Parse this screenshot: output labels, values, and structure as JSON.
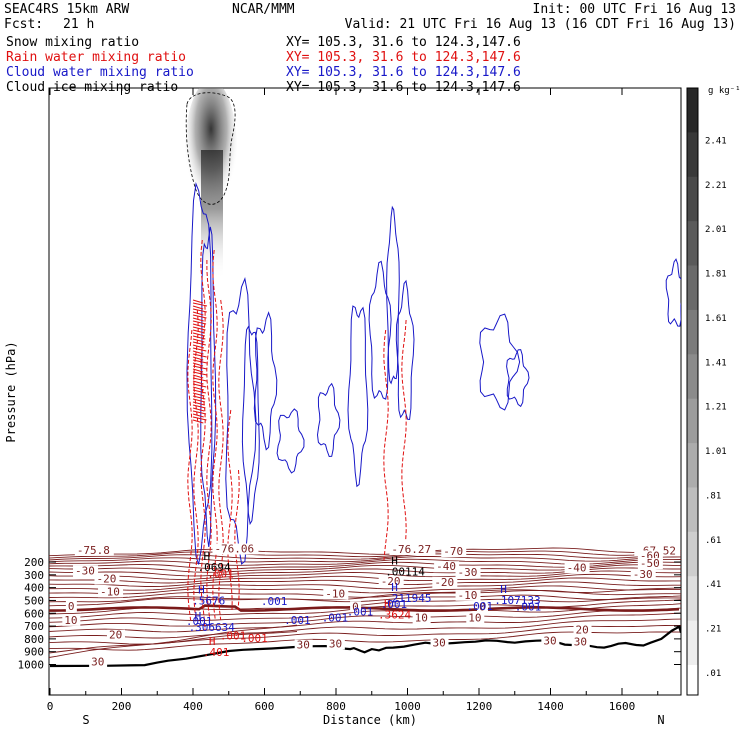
{
  "header": {
    "model": "SEAC4RS 15km ARW",
    "center": "NCAR/MMM",
    "init": "Init: 00 UTC Fri 16 Aug 13",
    "fcst_label": "Fcst:",
    "fcst_value": "21 h",
    "valid": "Valid: 21 UTC Fri 16 Aug 13 (16 CDT Fri 16 Aug 13)",
    "lines": [
      {
        "name": "Snow mixing ratio",
        "xy": "XY= 105.3, 31.6 to 124.3,147.6",
        "color": "#000000"
      },
      {
        "name": "Rain water mixing ratio",
        "xy": "XY= 105.3, 31.6 to 124.3,147.6",
        "color": "#e01010"
      },
      {
        "name": "Cloud water mixing ratio",
        "xy": "XY= 105.3, 31.6 to 124.3,147.6",
        "color": "#1818c8"
      },
      {
        "name": "Cloud ice mixing ratio",
        "xy": "XY= 105.3, 31.6 to 124.3,147.6",
        "color": "#000000"
      }
    ]
  },
  "colors": {
    "temperature": "#7a1f1f",
    "freezing": "#7a1a1a",
    "rain": "#e01010",
    "cloud_water": "#1818c8",
    "terrain": "#000000"
  },
  "colorbar": {
    "unit": "g kg⁻¹",
    "labels": [
      "2.41",
      "2.21",
      "2.01",
      "1.81",
      "1.61",
      "1.41",
      "1.21",
      "1.01",
      ".81",
      ".61",
      ".41",
      ".21",
      ".01"
    ]
  },
  "chart_data": {
    "type": "contour-cross-section",
    "xlabel": "Distance (km)",
    "ylabel": "Pressure (hPa)",
    "x_ticks": [
      0,
      200,
      400,
      600,
      800,
      1000,
      1200,
      1400,
      1600
    ],
    "x_tick_labels": [
      "0",
      "200",
      "400",
      "600",
      "800",
      "1000",
      "1200",
      "1400",
      "1600"
    ],
    "xlim": [
      0,
      1765
    ],
    "y_ticks": [
      200,
      300,
      400,
      500,
      600,
      700,
      800,
      900,
      1000
    ],
    "y_tick_labels": [
      "200",
      "300",
      "400",
      "500",
      "600",
      "700",
      "800",
      "900",
      "1000"
    ],
    "ylim": [
      1030,
      100
    ],
    "endpoint_left": "S",
    "endpoint_right": "N",
    "temperature_labels": [
      {
        "text": "-75.8",
        "x": 75,
        "p": 128
      },
      {
        "text": "-76.27",
        "x": 955,
        "p": 122
      },
      {
        "text": "-67.52",
        "x": 1640,
        "p": 133
      },
      {
        "text": "-76.06",
        "x": 460,
        "p": 118
      },
      {
        "text": "-70",
        "x": 1100,
        "p": 138
      },
      {
        "text": "-60",
        "x": 1650,
        "p": 172
      },
      {
        "text": "-50",
        "x": 1650,
        "p": 232
      },
      {
        "text": "-40",
        "x": 1080,
        "p": 256
      },
      {
        "text": "-40",
        "x": 1445,
        "p": 265
      },
      {
        "text": "-30",
        "x": 1140,
        "p": 303
      },
      {
        "text": "-30",
        "x": 1630,
        "p": 316
      },
      {
        "text": "-30",
        "x": 70,
        "p": 290
      },
      {
        "text": "-20",
        "x": 130,
        "p": 352
      },
      {
        "text": "-20",
        "x": 925,
        "p": 371
      },
      {
        "text": "-20",
        "x": 1075,
        "p": 378
      },
      {
        "text": "-10",
        "x": 140,
        "p": 452
      },
      {
        "text": "-10",
        "x": 770,
        "p": 469
      },
      {
        "text": "-10",
        "x": 1140,
        "p": 479
      },
      {
        "text": "0",
        "x": 50,
        "p": 566
      },
      {
        "text": "0",
        "x": 845,
        "p": 569
      },
      {
        "text": "0",
        "x": 1200,
        "p": 571
      },
      {
        "text": "10",
        "x": 40,
        "p": 675
      },
      {
        "text": "10",
        "x": 1020,
        "p": 658
      },
      {
        "text": "10",
        "x": 1170,
        "p": 657
      },
      {
        "text": "20",
        "x": 165,
        "p": 791
      },
      {
        "text": "20",
        "x": 1470,
        "p": 752
      },
      {
        "text": "30",
        "x": 690,
        "p": 868
      },
      {
        "text": "30",
        "x": 780,
        "p": 860
      },
      {
        "text": "30",
        "x": 1070,
        "p": 850
      },
      {
        "text": "30",
        "x": 1380,
        "p": 838
      },
      {
        "text": "30",
        "x": 1465,
        "p": 842
      },
      {
        "text": "30",
        "x": 115,
        "p": 1000
      }
    ],
    "maxima": [
      {
        "text": ".0694",
        "x": 435,
        "p": 262,
        "color": "#000000"
      },
      {
        "text": ".00114",
        "x": 960,
        "p": 298,
        "color": "#000000"
      },
      {
        "text": ".5676",
        "x": 420,
        "p": 523,
        "color": "#1818c8"
      },
      {
        "text": ".211945",
        "x": 960,
        "p": 503,
        "color": "#1818c8"
      },
      {
        "text": ".107133",
        "x": 1265,
        "p": 520,
        "color": "#1818c8"
      },
      {
        "text": ".3624",
        "x": 940,
        "p": 632,
        "color": "#e01010"
      },
      {
        "text": ".306634",
        "x": 410,
        "p": 730,
        "color": "#1818c8"
      },
      {
        "text": ".401",
        "x": 450,
        "p": 927,
        "color": "#e01010"
      }
    ],
    "cloud_water_labels": [
      {
        "text": ".001",
        "x": 590,
        "p": 537
      },
      {
        "text": ".001",
        "x": 925,
        "p": 557
      },
      {
        "text": ".001",
        "x": 830,
        "p": 617
      },
      {
        "text": ".001",
        "x": 760,
        "p": 663
      },
      {
        "text": ".001",
        "x": 655,
        "p": 685
      },
      {
        "text": ".001",
        "x": 380,
        "p": 692
      },
      {
        "text": ".001",
        "x": 1165,
        "p": 575
      },
      {
        "text": ".001",
        "x": 1300,
        "p": 580
      }
    ],
    "rain_labels": [
      {
        "text": ".001",
        "x": 440,
        "p": 320
      },
      {
        "text": ".001",
        "x": 475,
        "p": 805
      },
      {
        "text": ".001",
        "x": 535,
        "p": 823
      }
    ]
  }
}
